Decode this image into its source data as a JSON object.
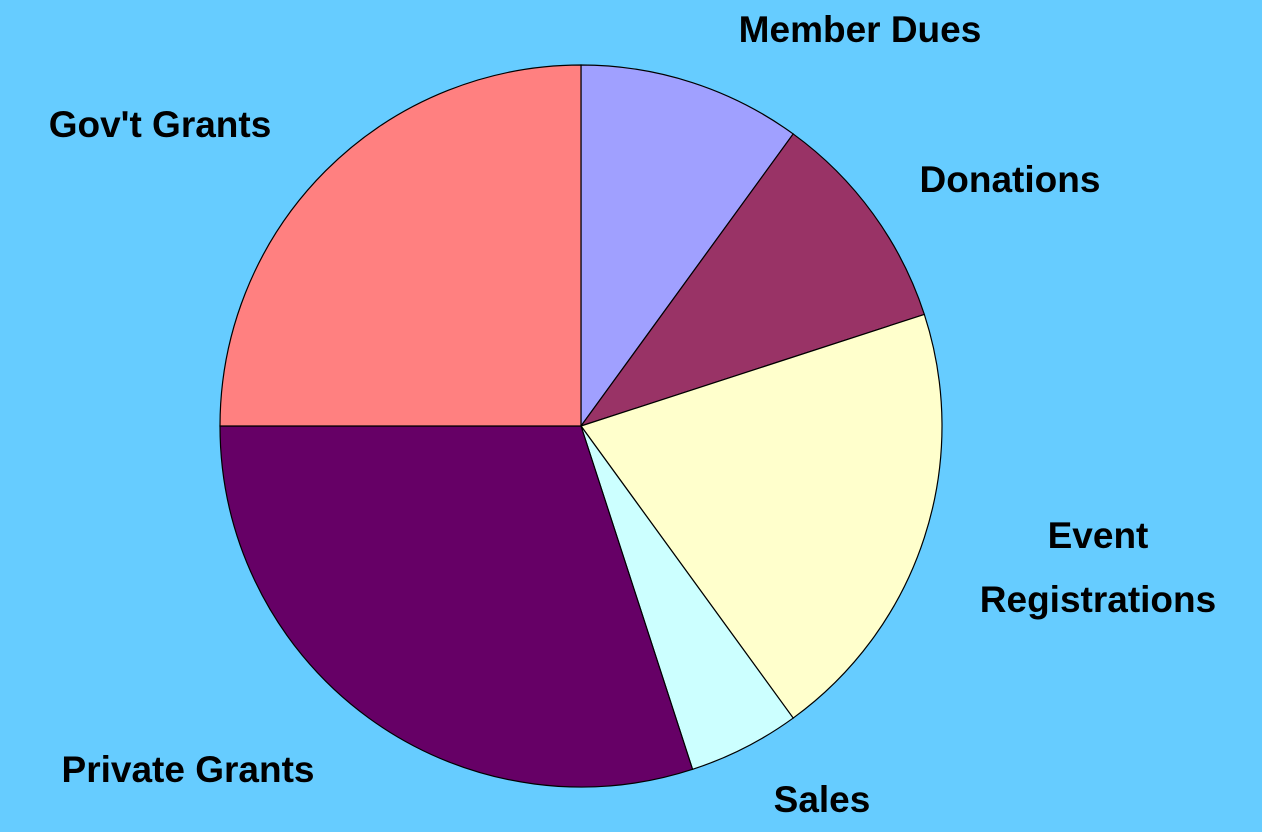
{
  "chart_data": {
    "type": "pie",
    "categories": [
      "Member Dues",
      "Donations",
      "Event Registrations",
      "Sales",
      "Private Grants",
      "Gov't Grants"
    ],
    "values": [
      10,
      10,
      20,
      5,
      30,
      25
    ],
    "colors": [
      "#a0a0ff",
      "#993366",
      "#ffffcc",
      "#ccffff",
      "#660066",
      "#ff8080"
    ]
  }
}
